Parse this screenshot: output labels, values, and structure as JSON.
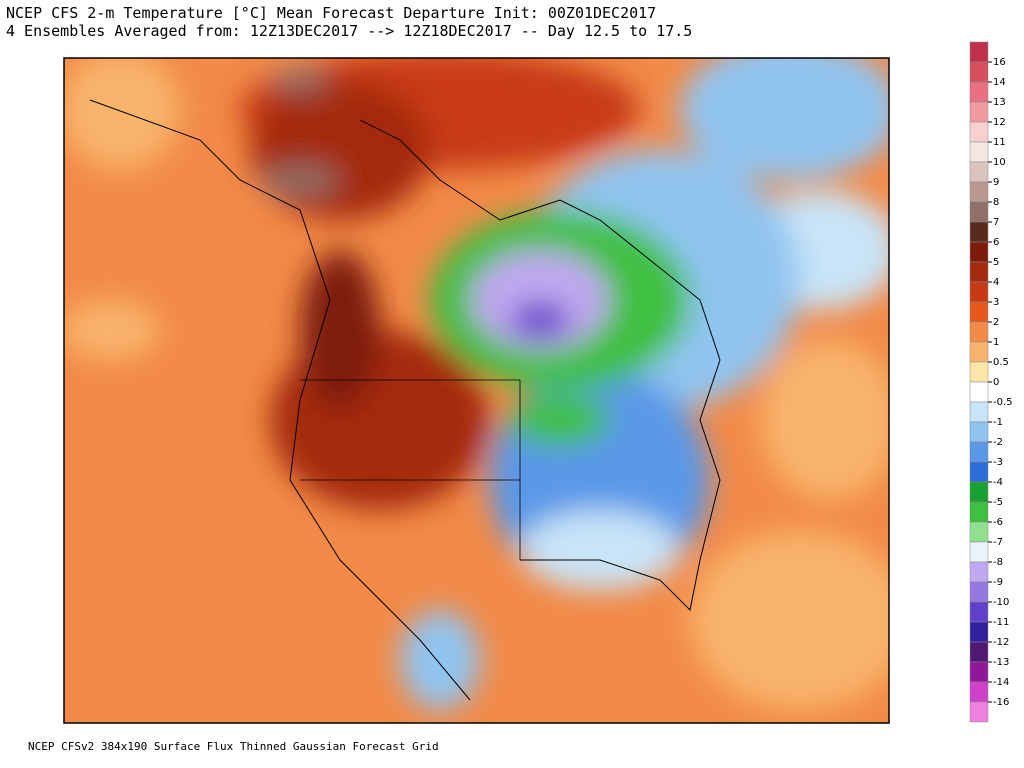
{
  "header": {
    "line1": "NCEP CFS 2-m Temperature [°C] Mean Forecast Departure Init: 00Z01DEC2017",
    "line2": "4 Ensembles Averaged from: 12Z13DEC2017 --> 12Z18DEC2017 -- Day 12.5 to 17.5"
  },
  "footer": "NCEP CFSv2 384x190 Surface Flux Thinned Gaussian Forecast Grid",
  "colorbar": {
    "labels": [
      "16",
      "14",
      "13",
      "12",
      "11",
      "10",
      "9",
      "8",
      "7",
      "6",
      "5",
      "4",
      "3",
      "2",
      "1",
      "0.5",
      "0",
      "-0.5",
      "-1",
      "-2",
      "-3",
      "-4",
      "-5",
      "-6",
      "-7",
      "-8",
      "-9",
      "-10",
      "-11",
      "-12",
      "-13",
      "-14",
      "-16"
    ],
    "colors": [
      "#c0304a",
      "#d8505e",
      "#e87080",
      "#f09aa0",
      "#f8d0d0",
      "#f4e6e2",
      "#dcc4bc",
      "#b89890",
      "#907068",
      "#5a2a1c",
      "#7e1c0c",
      "#a42a0e",
      "#c83a14",
      "#e8581c",
      "#f28a48",
      "#f8b46a",
      "#fde6a6",
      "#ffffff",
      "#c8e4f8",
      "#90c4f0",
      "#5a98e8",
      "#2a6cd8",
      "#18a030",
      "#40c040",
      "#90e090",
      "#e8f4f8",
      "#c0a8f0",
      "#9478e0",
      "#6040c8",
      "#3020a0",
      "#501870",
      "#901898",
      "#d040c8",
      "#f080e0"
    ]
  }
}
